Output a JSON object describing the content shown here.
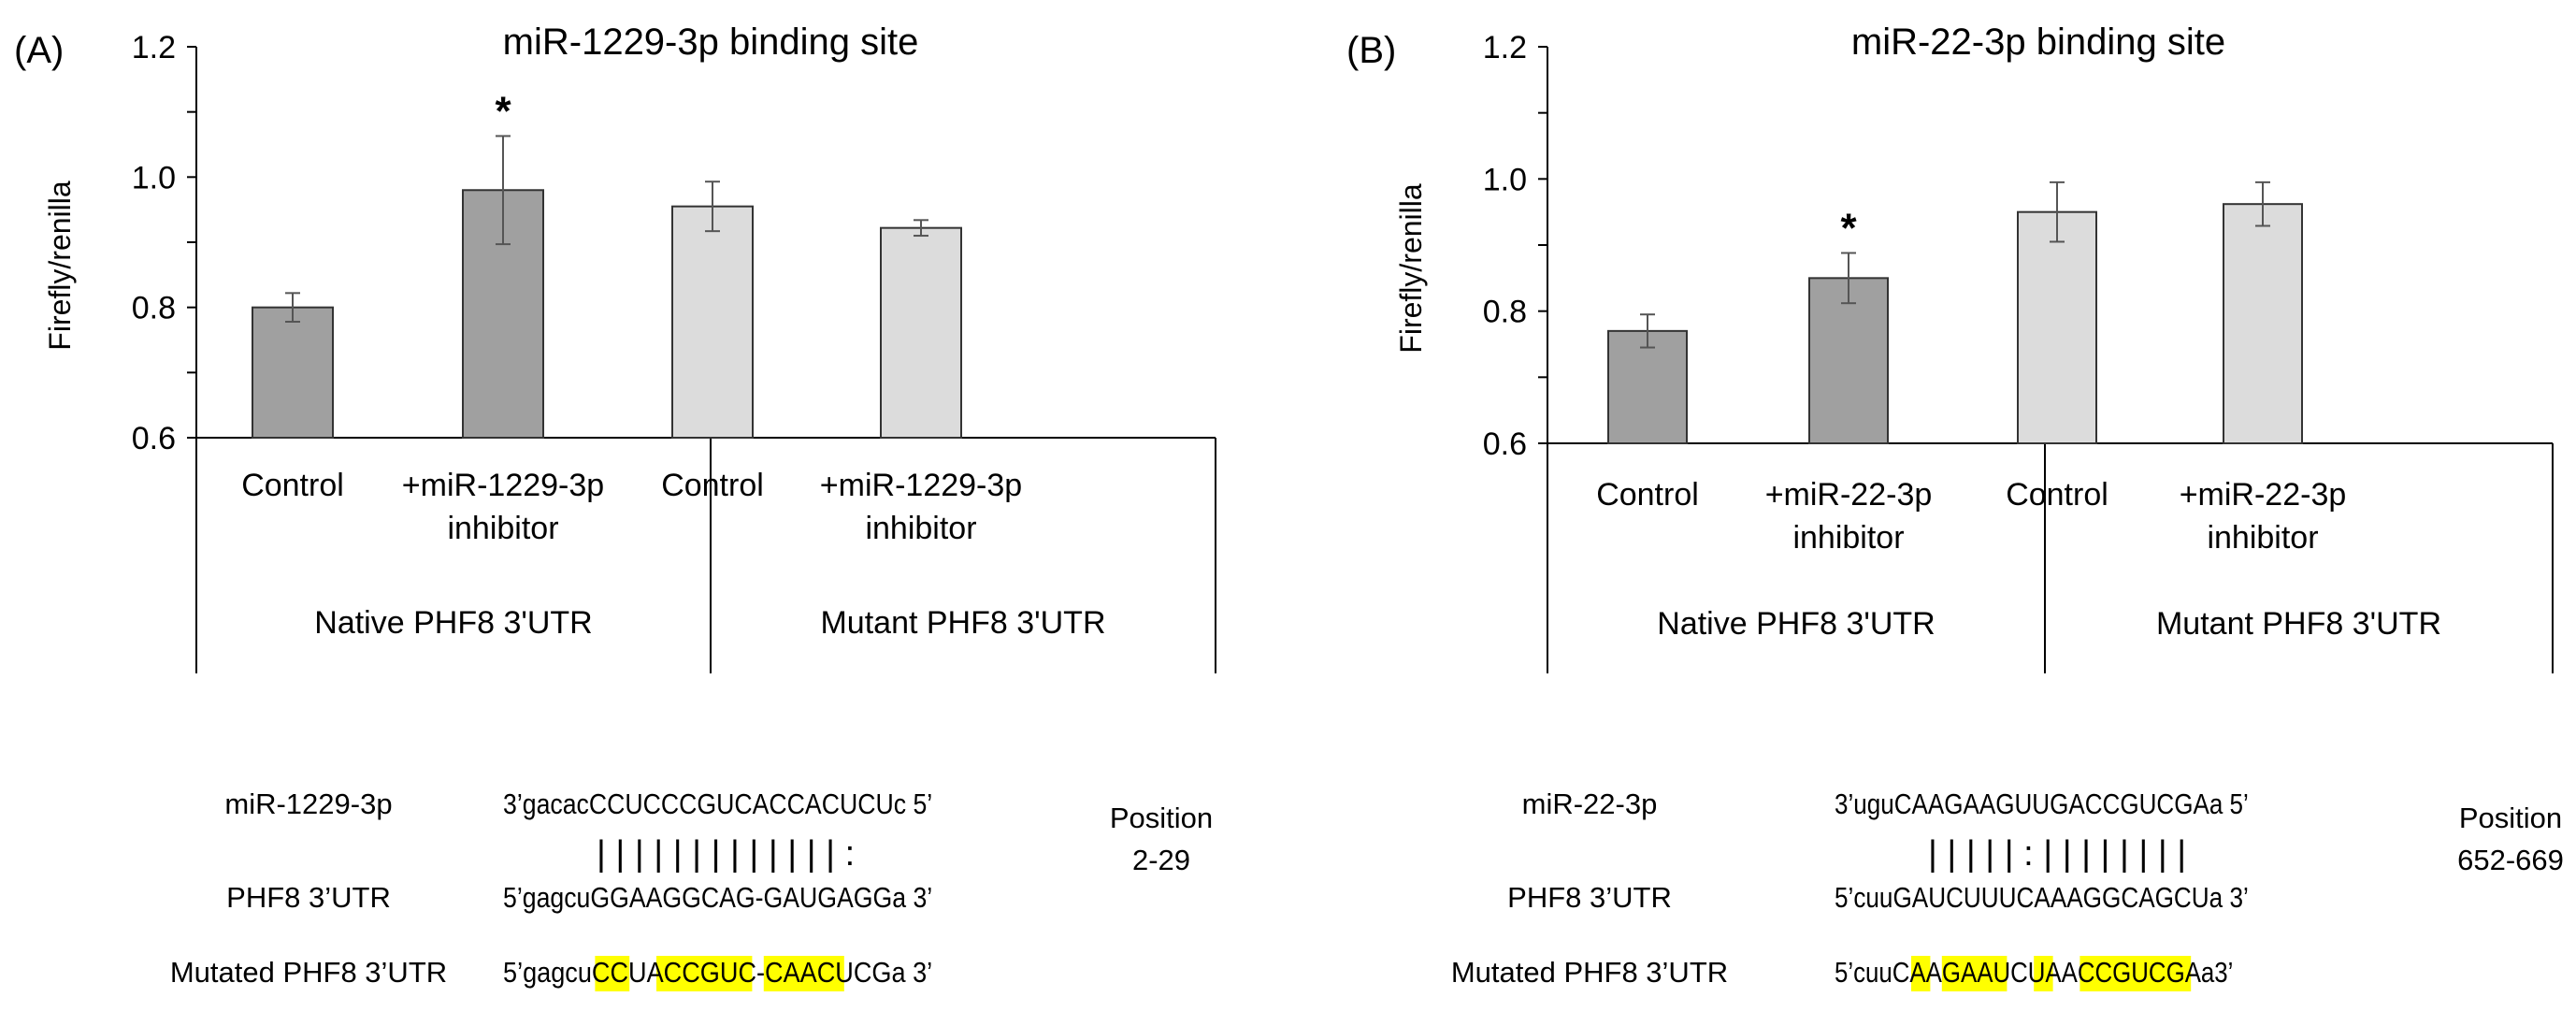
{
  "panels": [
    {
      "label": "(A)",
      "title": "miR-1229-3p binding site",
      "ylabel": "Firefly/renilla",
      "yticks": [
        "0.6",
        "0.8",
        "1.0",
        "1.2"
      ],
      "xgroups": [
        {
          "conditions": [
            [
              "Control"
            ],
            [
              "+miR-1229-3p",
              "inhibitor"
            ]
          ],
          "group": "Native PHF8 3'UTR"
        },
        {
          "conditions": [
            [
              "Control"
            ],
            [
              "+miR-1229-3p",
              "inhibitor"
            ]
          ],
          "group": "Mutant PHF8 3'UTR"
        }
      ],
      "annotations": [
        {
          "bar": 1,
          "text": "*"
        }
      ],
      "alignment": {
        "rows": [
          {
            "label": "miR-1229-3p",
            "seq": "3’gacacCCUCCCGUCACCACUCUc 5’"
          },
          {
            "label": "PHF8 3’UTR",
            "seq": "5’gagcuGGAAGGCAG-GAUGAGGa 3’"
          },
          {
            "label": "Mutated PHF8 3’UTR",
            "seq": "5’gagcuCCUACCGUC-CAACUCGa 3’"
          }
        ],
        "pairing": "| | |   | | | | | |   | | | |   :",
        "position_label": "Position",
        "position_value": "2-29",
        "highlights": [
          [
            6,
            2
          ],
          [
            10,
            6
          ],
          [
            17,
            5
          ]
        ]
      }
    },
    {
      "label": "(B)",
      "title": "miR-22-3p binding site",
      "ylabel": "Firefly/renilla",
      "yticks": [
        "0.6",
        "0.8",
        "1.0",
        "1.2"
      ],
      "xgroups": [
        {
          "conditions": [
            [
              "Control"
            ],
            [
              "+miR-22-3p",
              "inhibitor"
            ]
          ],
          "group": "Native PHF8 3'UTR"
        },
        {
          "conditions": [
            [
              "Control"
            ],
            [
              "+miR-22-3p",
              "inhibitor"
            ]
          ],
          "group": "Mutant PHF8 3'UTR"
        }
      ],
      "annotations": [
        {
          "bar": 1,
          "text": "*"
        }
      ],
      "alignment": {
        "rows": [
          {
            "label": "miR-22-3p",
            "seq": "3’uguCAAGAAGUUGACCGUCGAa 5’"
          },
          {
            "label": "PHF8 3’UTR",
            "seq": "5’cuuGAUCUUUCAAAGGCAGCUa 3’"
          },
          {
            "label": "Mutated PHF8 3’UTR",
            "seq": "5’cuuCAAGAAUCUAACCGUCGAa3’"
          }
        ],
        "pairing": "| | | | |   :   |     | | | | | | |",
        "position_label": "Position",
        "position_value": "652-669",
        "highlights": [
          [
            5,
            1
          ],
          [
            7,
            4
          ],
          [
            13,
            1
          ],
          [
            16,
            7
          ]
        ]
      }
    }
  ],
  "chart_data": [
    {
      "type": "bar",
      "title": "miR-1229-3p binding site",
      "xlabel": "",
      "ylabel": "Firefly/renilla",
      "ylim": [
        0.6,
        1.2
      ],
      "categories": [
        "Native PHF8 3'UTR: Control",
        "Native PHF8 3'UTR: +miR-1229-3p inhibitor",
        "Mutant PHF8 3'UTR: Control",
        "Mutant PHF8 3'UTR: +miR-1229-3p inhibitor"
      ],
      "values": [
        0.8,
        0.98,
        0.955,
        0.922
      ],
      "errors": [
        0.022,
        0.083,
        0.038,
        0.012
      ],
      "colors": [
        "#a0a0a0",
        "#a0a0a0",
        "#dcdcdc",
        "#dcdcdc"
      ],
      "grid": false,
      "legend": "none"
    },
    {
      "type": "bar",
      "title": "miR-22-3p binding site",
      "xlabel": "",
      "ylabel": "Firefly/renilla",
      "ylim": [
        0.6,
        1.2
      ],
      "categories": [
        "Native PHF8 3'UTR: Control",
        "Native PHF8 3'UTR: +miR-22-3p inhibitor",
        "Mutant PHF8 3'UTR: Control",
        "Mutant PHF8 3'UTR: +miR-22-3p inhibitor"
      ],
      "values": [
        0.77,
        0.85,
        0.95,
        0.962
      ],
      "errors": [
        0.025,
        0.038,
        0.045,
        0.033
      ],
      "colors": [
        "#a0a0a0",
        "#a0a0a0",
        "#dcdcdc",
        "#dcdcdc"
      ],
      "grid": false,
      "legend": "none"
    }
  ]
}
